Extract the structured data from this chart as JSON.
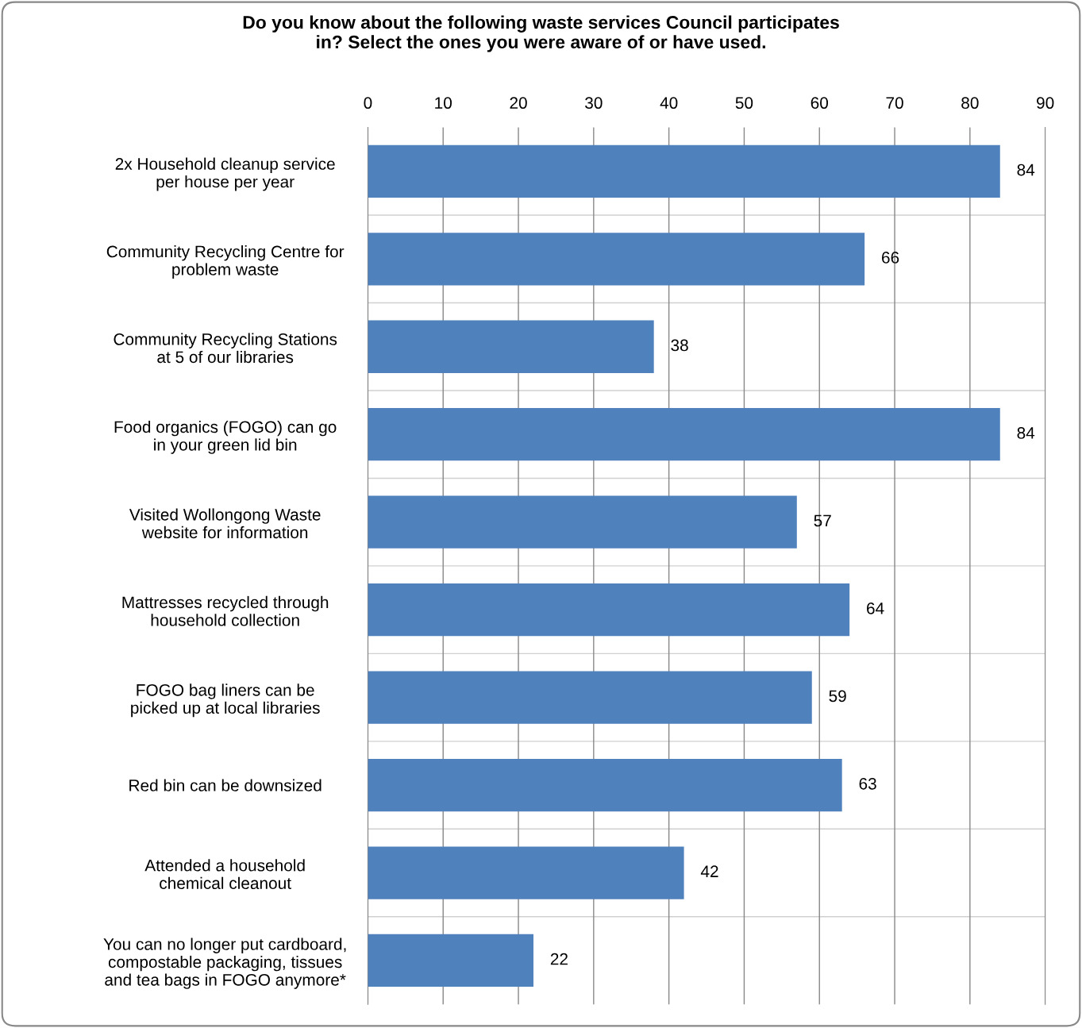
{
  "chart_data": {
    "type": "bar",
    "orientation": "horizontal",
    "title": "Do you know about the following waste services Council participates\nin? Select the ones you were aware of or have used.",
    "categories": [
      "2x Household cleanup service\nper house per year",
      "Community Recycling Centre for\nproblem waste",
      "Community Recycling Stations\nat 5 of our libraries",
      "Food organics (FOGO) can go\nin your green lid bin",
      "Visited Wollongong Waste\nwebsite for information",
      "Mattresses recycled through\nhousehold collection",
      "FOGO bag liners can be\npicked up at local libraries",
      "Red bin can be downsized",
      "Attended a household\nchemical cleanout",
      "You can no longer put cardboard,\ncompostable packaging, tissues\nand tea bags in FOGO anymore*"
    ],
    "values": [
      84,
      66,
      38,
      84,
      57,
      64,
      59,
      63,
      42,
      22
    ],
    "color": "#4f81bd",
    "xlim": [
      0,
      90
    ],
    "xticks": [
      0,
      10,
      20,
      30,
      40,
      50,
      60,
      70,
      80,
      90
    ],
    "grid": true,
    "data_labels": true
  }
}
